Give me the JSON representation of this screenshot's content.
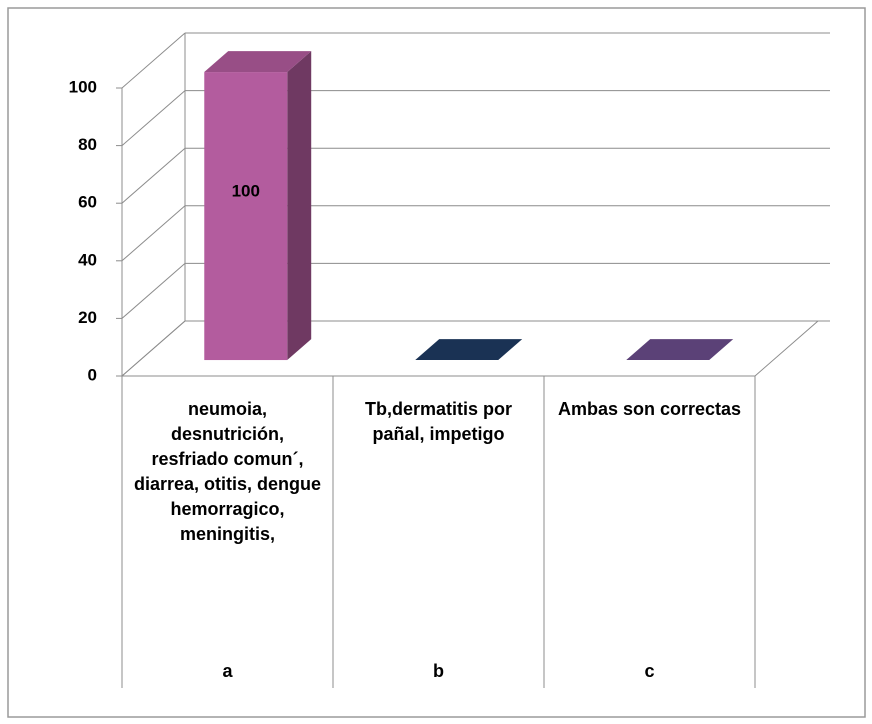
{
  "chart_data": {
    "type": "bar3d",
    "categories": [
      "a",
      "b",
      "c"
    ],
    "category_descriptions": [
      "neumoia, desnutrición, resfriado comun´, diarrea, otitis, dengue hemorragico, meningitis,",
      "Tb,dermatitis por pañal, impetigo",
      "Ambas son correctas"
    ],
    "values": [
      100,
      0,
      0
    ],
    "show_value_label": [
      true,
      false,
      false
    ],
    "colors": [
      "#b35c9e",
      "#1f3b63",
      "#6b4c8c"
    ],
    "ylim": [
      0,
      100
    ],
    "yticks": [
      0,
      20,
      40,
      60,
      80,
      100
    ],
    "grid": true
  }
}
